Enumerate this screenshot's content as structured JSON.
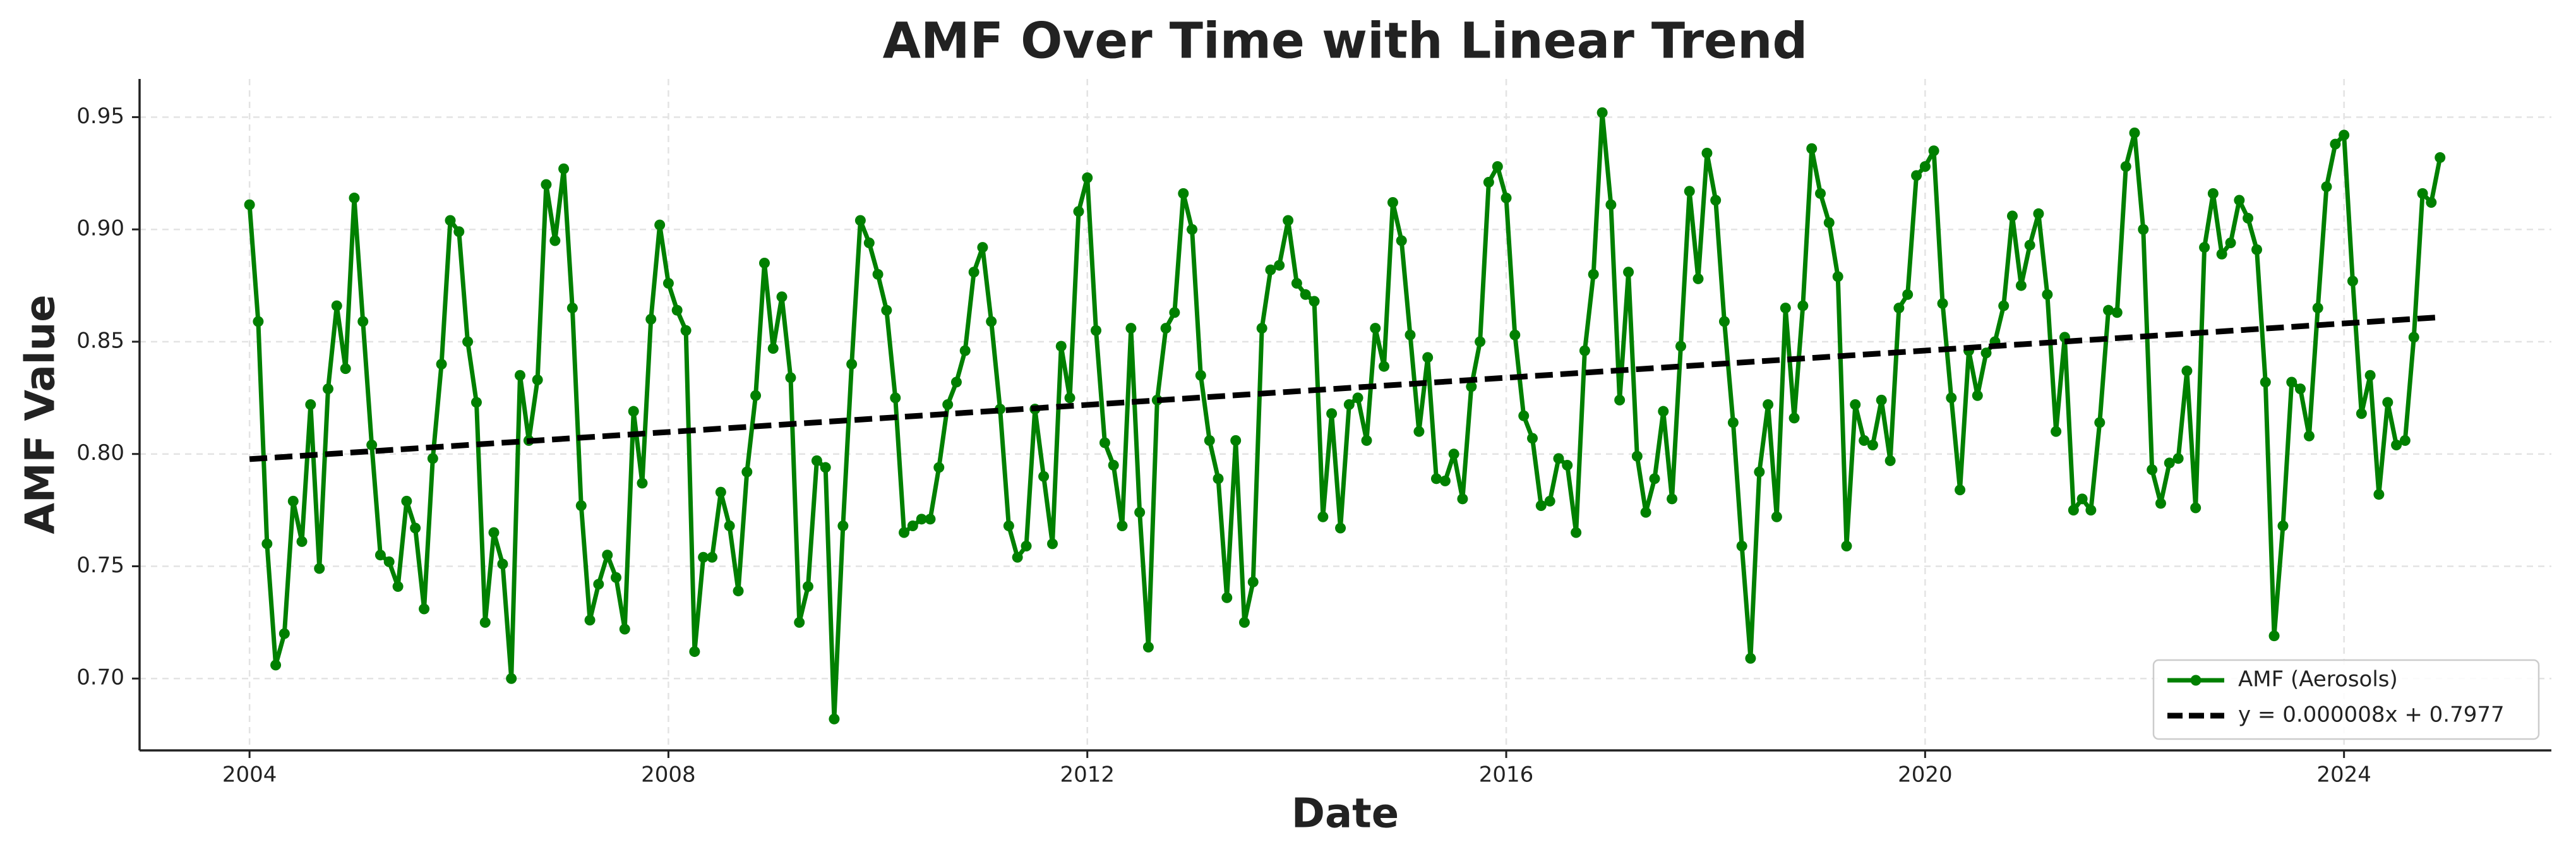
{
  "chart_data": {
    "type": "line",
    "title": "AMF Over Time with Linear Trend",
    "x_label": "Date",
    "y_label": "AMF Value",
    "xlim": [
      2002.95,
      2025.98
    ],
    "xticks": [
      2004,
      2008,
      2012,
      2016,
      2020,
      2024
    ],
    "ylim": [
      0.668,
      0.967
    ],
    "yticks": [
      {
        "value": 0.7,
        "label": "0.70"
      },
      {
        "value": 0.75,
        "label": "0.75"
      },
      {
        "value": 0.8,
        "label": "0.80"
      },
      {
        "value": 0.85,
        "label": "0.85"
      },
      {
        "value": 0.9,
        "label": "0.90"
      },
      {
        "value": 0.95,
        "label": "0.95"
      }
    ],
    "grid": true,
    "legend": "lower right",
    "series": [
      {
        "name": "AMF (Aerosols)",
        "color": "#008000",
        "markers": true,
        "dashed": false,
        "x": [
          2004,
          2004.083,
          2004.167,
          2004.25,
          2004.333,
          2004.417,
          2004.5,
          2004.583,
          2004.667,
          2004.75,
          2004.833,
          2004.917,
          2005,
          2005.083,
          2005.167,
          2005.25,
          2005.333,
          2005.417,
          2005.5,
          2005.583,
          2005.667,
          2005.75,
          2005.833,
          2005.917,
          2006,
          2006.083,
          2006.167,
          2006.25,
          2006.333,
          2006.417,
          2006.5,
          2006.583,
          2006.667,
          2006.75,
          2006.833,
          2006.917,
          2007,
          2007.083,
          2007.167,
          2007.25,
          2007.333,
          2007.417,
          2007.5,
          2007.583,
          2007.667,
          2007.75,
          2007.833,
          2007.917,
          2008,
          2008.083,
          2008.167,
          2008.25,
          2008.333,
          2008.417,
          2008.5,
          2008.583,
          2008.667,
          2008.75,
          2008.833,
          2008.917,
          2009,
          2009.083,
          2009.167,
          2009.25,
          2009.333,
          2009.417,
          2009.5,
          2009.583,
          2009.667,
          2009.75,
          2009.833,
          2009.917,
          2010,
          2010.083,
          2010.167,
          2010.25,
          2010.333,
          2010.417,
          2010.5,
          2010.583,
          2010.667,
          2010.75,
          2010.833,
          2010.917,
          2011,
          2011.083,
          2011.167,
          2011.25,
          2011.333,
          2011.417,
          2011.5,
          2011.583,
          2011.667,
          2011.75,
          2011.833,
          2011.917,
          2012,
          2012.083,
          2012.167,
          2012.25,
          2012.333,
          2012.417,
          2012.5,
          2012.583,
          2012.667,
          2012.75,
          2012.833,
          2012.917,
          2013,
          2013.083,
          2013.167,
          2013.25,
          2013.333,
          2013.417,
          2013.5,
          2013.583,
          2013.667,
          2013.75,
          2013.833,
          2013.917,
          2014,
          2014.083,
          2014.167,
          2014.25,
          2014.333,
          2014.417,
          2014.5,
          2014.583,
          2014.667,
          2014.75,
          2014.833,
          2014.917,
          2015,
          2015.083,
          2015.167,
          2015.25,
          2015.333,
          2015.417,
          2015.5,
          2015.583,
          2015.667,
          2015.75,
          2015.833,
          2015.917,
          2016,
          2016.083,
          2016.167,
          2016.25,
          2016.333,
          2016.417,
          2016.5,
          2016.583,
          2016.667,
          2016.75,
          2016.833,
          2016.917,
          2017,
          2017.083,
          2017.167,
          2017.25,
          2017.333,
          2017.417,
          2017.5,
          2017.583,
          2017.667,
          2017.75,
          2017.833,
          2017.917,
          2018,
          2018.083,
          2018.167,
          2018.25,
          2018.333,
          2018.417,
          2018.5,
          2018.583,
          2018.667,
          2018.75,
          2018.833,
          2018.917,
          2019,
          2019.083,
          2019.167,
          2019.25,
          2019.333,
          2019.417,
          2019.5,
          2019.583,
          2019.667,
          2019.75,
          2019.833,
          2019.917,
          2020,
          2020.083,
          2020.167,
          2020.25,
          2020.333,
          2020.417,
          2020.5,
          2020.583,
          2020.667,
          2020.75,
          2020.833,
          2020.917,
          2021,
          2021.083,
          2021.167,
          2021.25,
          2021.333,
          2021.417,
          2021.5,
          2021.583,
          2021.667,
          2021.75,
          2021.833,
          2021.917,
          2022,
          2022.083,
          2022.167,
          2022.25,
          2022.333,
          2022.417,
          2022.5,
          2022.583,
          2022.667,
          2022.75,
          2022.833,
          2022.917,
          2023,
          2023.083,
          2023.167,
          2023.25,
          2023.333,
          2023.417,
          2023.5,
          2023.583,
          2023.667,
          2023.75,
          2023.833,
          2023.917,
          2024,
          2024.083,
          2024.167,
          2024.25,
          2024.333,
          2024.417,
          2024.5,
          2024.583,
          2024.667,
          2024.75,
          2024.833,
          2024.917
        ],
        "values": [
          0.911,
          0.859,
          0.76,
          0.706,
          0.72,
          0.779,
          0.761,
          0.822,
          0.749,
          0.829,
          0.866,
          0.838,
          0.914,
          0.859,
          0.804,
          0.755,
          0.752,
          0.741,
          0.779,
          0.767,
          0.731,
          0.798,
          0.84,
          0.904,
          0.899,
          0.85,
          0.823,
          0.725,
          0.765,
          0.751,
          0.7,
          0.835,
          0.806,
          0.833,
          0.92,
          0.895,
          0.927,
          0.865,
          0.777,
          0.726,
          0.742,
          0.755,
          0.745,
          0.722,
          0.819,
          0.787,
          0.86,
          0.902,
          0.876,
          0.864,
          0.855,
          0.712,
          0.754,
          0.754,
          0.783,
          0.768,
          0.739,
          0.792,
          0.826,
          0.885,
          0.847,
          0.87,
          0.834,
          0.725,
          0.741,
          0.797,
          0.794,
          0.682,
          0.768,
          0.84,
          0.904,
          0.894,
          0.88,
          0.864,
          0.825,
          0.765,
          0.768,
          0.771,
          0.771,
          0.794,
          0.822,
          0.832,
          0.846,
          0.881,
          0.892,
          0.859,
          0.82,
          0.768,
          0.754,
          0.759,
          0.82,
          0.79,
          0.76,
          0.848,
          0.825,
          0.908,
          0.923,
          0.855,
          0.805,
          0.795,
          0.768,
          0.856,
          0.774,
          0.714,
          0.824,
          0.856,
          0.863,
          0.916,
          0.9,
          0.835,
          0.806,
          0.789,
          0.736,
          0.806,
          0.725,
          0.743,
          0.856,
          0.882,
          0.884,
          0.904,
          0.876,
          0.871,
          0.868,
          0.772,
          0.818,
          0.767,
          0.822,
          0.825,
          0.806,
          0.856,
          0.839,
          0.912,
          0.895,
          0.853,
          0.81,
          0.843,
          0.789,
          0.788,
          0.8,
          0.78,
          0.83,
          0.85,
          0.921,
          0.928,
          0.914,
          0.853,
          0.817,
          0.807,
          0.777,
          0.779,
          0.798,
          0.795,
          0.765,
          0.846,
          0.88,
          0.952,
          0.911,
          0.824,
          0.881,
          0.799,
          0.774,
          0.789,
          0.819,
          0.78,
          0.848,
          0.917,
          0.878,
          0.934,
          0.913,
          0.859,
          0.814,
          0.759,
          0.709,
          0.792,
          0.822,
          0.772,
          0.865,
          0.816,
          0.866,
          0.936,
          0.916,
          0.903,
          0.879,
          0.759,
          0.822,
          0.806,
          0.804,
          0.824,
          0.797,
          0.865,
          0.871,
          0.924,
          0.928,
          0.935,
          0.867,
          0.825,
          0.784,
          0.846,
          0.826,
          0.845,
          0.85,
          0.866,
          0.906,
          0.875,
          0.893,
          0.907,
          0.871,
          0.81,
          0.852,
          0.775,
          0.78,
          0.775,
          0.814,
          0.864,
          0.863,
          0.928,
          0.943,
          0.9,
          0.793,
          0.778,
          0.796,
          0.798,
          0.837,
          0.776,
          0.892,
          0.916,
          0.889,
          0.894,
          0.913,
          0.905,
          0.891,
          0.832,
          0.719,
          0.768,
          0.832,
          0.829,
          0.808,
          0.865,
          0.919,
          0.938,
          0.942,
          0.877,
          0.818,
          0.835,
          0.782,
          0.823,
          0.804,
          0.806,
          0.852,
          0.916,
          0.912,
          0.932
        ]
      },
      {
        "name": "y = 0.000008x + 0.7977",
        "color": "#000000",
        "markers": false,
        "dashed": true,
        "x": [
          2004,
          2024.917
        ],
        "values": [
          0.7977,
          0.8609
        ]
      }
    ]
  }
}
